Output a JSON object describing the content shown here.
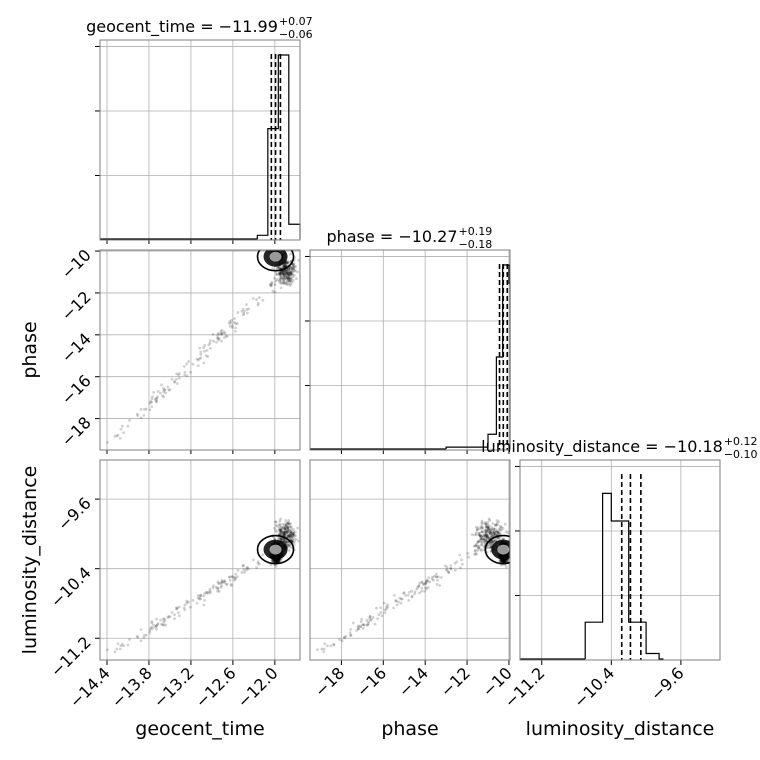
{
  "chart_data": {
    "type": "corner",
    "parameters": [
      "geocent_time",
      "phase",
      "luminosity_distance"
    ],
    "titles": [
      {
        "label": "geocent_time",
        "median": "−11.99",
        "plus": "+0.07",
        "minus": "−0.06",
        "text": "geocent_time = −11.99"
      },
      {
        "label": "phase",
        "median": "−10.27",
        "plus": "+0.19",
        "minus": "−0.18",
        "text": "phase = −10.27"
      },
      {
        "label": "luminosity_distance",
        "median": "−10.18",
        "plus": "+0.12",
        "minus": "−0.10",
        "text": "luminosity_distance = −10.18"
      }
    ],
    "ranges": {
      "geocent_time": [
        -14.5,
        -11.64
      ],
      "phase": [
        -19.5,
        -9.95
      ],
      "luminosity_distance": [
        -11.45,
        -9.15
      ]
    },
    "ticks": {
      "geocent_time": {
        "values": [
          -14.4,
          -13.8,
          -13.2,
          -12.6,
          -12.0
        ],
        "labels": [
          "−14.4",
          "−13.8",
          "−13.2",
          "−12.6",
          "−12.0"
        ]
      },
      "phase": {
        "values": [
          -18,
          -16,
          -14,
          -12,
          -10
        ],
        "labels": [
          "−18",
          "−16",
          "−14",
          "−12",
          "−10"
        ]
      },
      "luminosity_distance": {
        "values": [
          -11.2,
          -10.4,
          -9.6
        ],
        "labels": [
          "−11.2",
          "−10.4",
          "−9.6"
        ]
      }
    },
    "histograms": [
      {
        "param": "geocent_time",
        "edges": [
          -12.25,
          -12.1,
          -11.95,
          -11.8,
          -11.64
        ],
        "counts": [
          0.02,
          0.6,
          1.0,
          0.08
        ],
        "quantiles": [
          -12.05,
          -11.99,
          -11.92
        ]
      },
      {
        "param": "phase",
        "edges": [
          -13.0,
          -11.0,
          -10.6,
          -10.3,
          -10.0,
          -9.95
        ],
        "counts": [
          0.01,
          0.08,
          0.5,
          1.0,
          0.9
        ],
        "quantiles": [
          -10.45,
          -10.27,
          -10.08
        ]
      },
      {
        "param": "luminosity_distance",
        "edges": [
          -10.7,
          -10.5,
          -10.4,
          -10.2,
          -10.0,
          -9.85,
          -9.8
        ],
        "counts": [
          0.2,
          0.9,
          0.75,
          0.2,
          0.03,
          0.0
        ],
        "quantiles": [
          -10.28,
          -10.18,
          -10.06
        ]
      }
    ],
    "scatter_pairs": [
      {
        "x": "geocent_time",
        "y": "phase"
      },
      {
        "x": "geocent_time",
        "y": "luminosity_distance"
      },
      {
        "x": "phase",
        "y": "luminosity_distance"
      }
    ],
    "grid": true
  }
}
